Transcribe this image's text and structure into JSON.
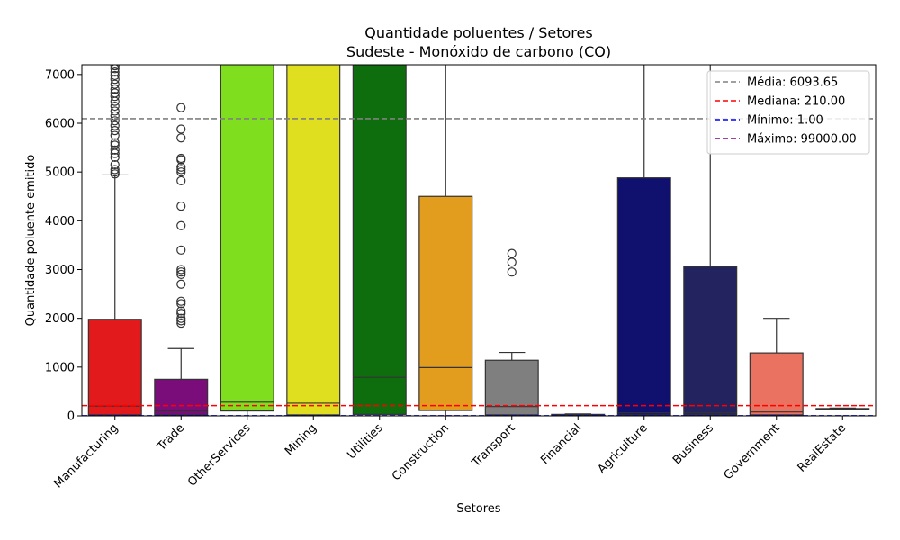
{
  "chart_data": {
    "type": "box",
    "title": "Quantidade poluentes / Setores",
    "subtitle": "Sudeste - Monóxido de carbono (CO)",
    "xlabel": "Setores",
    "ylabel": "Quantidade poluente emitido",
    "ylim": [
      0,
      7200
    ],
    "yticks": [
      0,
      1000,
      2000,
      3000,
      4000,
      5000,
      6000,
      7000
    ],
    "grid": false,
    "legend_position": "top-right",
    "categories": [
      "Manufacturing",
      "Trade",
      "OtherServices",
      "Mining",
      "Utilities",
      "Construction",
      "Transport",
      "Financial",
      "Agriculture",
      "Business",
      "Government",
      "RealEstate"
    ],
    "boxes": [
      {
        "category": "Manufacturing",
        "color": "#e31a1c",
        "q1": 20,
        "median": 200,
        "q3": 1980,
        "whisker_low": 1,
        "whisker_high": 4940,
        "outliers": [
          4960,
          5000,
          5050,
          5150,
          5300,
          5380,
          5450,
          5550,
          5600,
          5750,
          5850,
          5950,
          6050,
          6150,
          6250,
          6350,
          6450,
          6550,
          6620,
          6700,
          6800,
          6900,
          6980,
          7050,
          7120,
          7180
        ]
      },
      {
        "category": "Trade",
        "color": "#7b0d7b",
        "q1": 20,
        "median": 100,
        "q3": 750,
        "whisker_low": 1,
        "whisker_high": 1380,
        "outliers": [
          1900,
          1950,
          2000,
          2100,
          2150,
          2300,
          2350,
          2700,
          2900,
          2950,
          3000,
          3400,
          3900,
          4300,
          4820,
          5000,
          5050,
          5100,
          5250,
          5280,
          5700,
          5880,
          6320
        ]
      },
      {
        "category": "OtherServices",
        "color": "#7fdf1f",
        "q1": 100,
        "median": 280,
        "q3": 7300,
        "whisker_low": 1,
        "whisker_high": 7300,
        "outliers": []
      },
      {
        "category": "Mining",
        "color": "#dfdf1f",
        "q1": 20,
        "median": 260,
        "q3": 7300,
        "whisker_low": 1,
        "whisker_high": 7300,
        "outliers": []
      },
      {
        "category": "Utilities",
        "color": "#0e6e0e",
        "q1": 30,
        "median": 790,
        "q3": 7300,
        "whisker_low": 1,
        "whisker_high": 7300,
        "outliers": []
      },
      {
        "category": "Construction",
        "color": "#e29d1e",
        "q1": 110,
        "median": 990,
        "q3": 4500,
        "whisker_low": 1,
        "whisker_high": 7300,
        "outliers": []
      },
      {
        "category": "Transport",
        "color": "#7f7f7f",
        "q1": 20,
        "median": 190,
        "q3": 1140,
        "whisker_low": 1,
        "whisker_high": 1300,
        "outliers": [
          2950,
          3150,
          3330
        ]
      },
      {
        "category": "Financial",
        "color": "#1a1a70",
        "q1": 1,
        "median": 10,
        "q3": 30,
        "whisker_low": 1,
        "whisker_high": 40,
        "outliers": []
      },
      {
        "category": "Agriculture",
        "color": "#10106e",
        "q1": 20,
        "median": 60,
        "q3": 4880,
        "whisker_low": 1,
        "whisker_high": 7300,
        "outliers": []
      },
      {
        "category": "Business",
        "color": "#23235f",
        "q1": 20,
        "median": 60,
        "q3": 3060,
        "whisker_low": 1,
        "whisker_high": 7300,
        "outliers": []
      },
      {
        "category": "Government",
        "color": "#e97360",
        "q1": 20,
        "median": 80,
        "q3": 1290,
        "whisker_low": 1,
        "whisker_high": 2000,
        "outliers": []
      },
      {
        "category": "RealEstate",
        "color": "#c06070",
        "q1": 130,
        "median": 140,
        "q3": 150,
        "whisker_low": 120,
        "whisker_high": 160,
        "outliers": []
      }
    ],
    "reference_lines": [
      {
        "label": "Média: 6093.65",
        "value": 6093.65,
        "color": "#808080"
      },
      {
        "label": "Mediana: 210.00",
        "value": 210.0,
        "color": "#ff0000"
      },
      {
        "label": "Mínimo: 1.00",
        "value": 1.0,
        "color": "#0000ff"
      },
      {
        "label": "Máximo: 99000.00",
        "value": 99000.0,
        "color": "#800080"
      }
    ]
  }
}
